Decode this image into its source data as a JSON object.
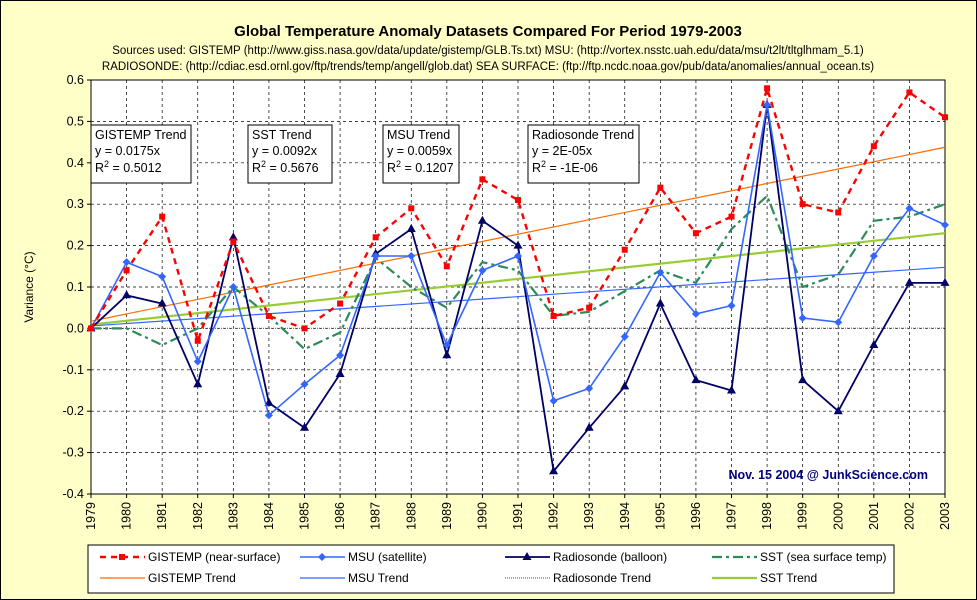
{
  "chart_data": {
    "type": "line",
    "title": "Global Temperature Anomaly Datasets Compared For Period 1979-2003",
    "subtitle_lines": [
      "Sources used: GISTEMP (http://www.giss.nasa.gov/data/update/gistemp/GLB.Ts.txt) MSU: (http://vortex.nsstc.uah.edu/data/msu/t2lt/tltglhmam_5.1)",
      "RADIOSONDE: (http://cdiac.esd.ornl.gov/ftp/trends/temp/angell/glob.dat) SEA SURFACE: (ftp://ftp.ncdc.noaa.gov/pub/data/anomalies/annual_ocean.ts)"
    ],
    "ylabel": "Variance (°C)",
    "xlabel": "",
    "ylim": [
      -0.4,
      0.6
    ],
    "y_ticks": [
      "-0.4",
      "-0.3",
      "-0.2",
      "-0.1",
      "0.0",
      "0.1",
      "0.2",
      "0.3",
      "0.4",
      "0.5",
      "0.6"
    ],
    "categories": [
      "1979",
      "1980",
      "1981",
      "1982",
      "1983",
      "1984",
      "1985",
      "1986",
      "1987",
      "1988",
      "1989",
      "1990",
      "1991",
      "1992",
      "1993",
      "1994",
      "1995",
      "1996",
      "1997",
      "1998",
      "1999",
      "2000",
      "2001",
      "2002",
      "2003"
    ],
    "grid": true,
    "series": [
      {
        "name": "GISTEMP (near-surface)",
        "color": "#ff0000",
        "style": "dashed-square",
        "values": [
          0.0,
          0.14,
          0.27,
          -0.03,
          0.21,
          0.03,
          0.0,
          0.06,
          0.22,
          0.29,
          0.15,
          0.36,
          0.31,
          0.03,
          0.05,
          0.19,
          0.34,
          0.23,
          0.27,
          0.58,
          0.3,
          0.28,
          0.44,
          0.57,
          0.51
        ]
      },
      {
        "name": "MSU (satellite)",
        "color": "#3366ff",
        "style": "solid-diamond",
        "values": [
          0.0,
          0.16,
          0.125,
          -0.08,
          0.1,
          -0.21,
          -0.135,
          -0.065,
          0.175,
          0.175,
          -0.04,
          0.14,
          0.175,
          -0.175,
          -0.145,
          -0.02,
          0.135,
          0.035,
          0.055,
          0.54,
          0.025,
          0.015,
          0.175,
          0.29,
          0.25
        ]
      },
      {
        "name": "Radiosonde (balloon)",
        "color": "#000066",
        "style": "solid-triangle",
        "values": [
          0.0,
          0.08,
          0.06,
          -0.135,
          0.22,
          -0.18,
          -0.24,
          -0.11,
          0.18,
          0.24,
          -0.065,
          0.26,
          0.2,
          -0.345,
          -0.24,
          -0.14,
          0.06,
          -0.125,
          -0.15,
          0.54,
          -0.125,
          -0.2,
          -0.04,
          0.11,
          0.11
        ]
      },
      {
        "name": "SST (sea surface temp)",
        "color": "#2e8b57",
        "style": "dashdot",
        "values": [
          0.0,
          0.0,
          -0.04,
          0.0,
          0.1,
          0.03,
          -0.05,
          -0.01,
          0.17,
          0.1,
          0.05,
          0.16,
          0.14,
          0.03,
          0.04,
          0.09,
          0.14,
          0.11,
          0.24,
          0.32,
          0.1,
          0.13,
          0.26,
          0.27,
          0.3
        ]
      }
    ],
    "trends": [
      {
        "name": "GISTEMP Trend",
        "color": "#ff6a00",
        "equation": "y = 0.0175x",
        "r2_value": "0.5012",
        "slope": 0.0175
      },
      {
        "name": "MSU Trend",
        "color": "#3366ff",
        "equation": "y = 0.0059x",
        "r2_value": "0.1207",
        "slope": 0.0059
      },
      {
        "name": "Radiosonde Trend",
        "color": "#808000",
        "equation": "y = 2E-05x",
        "r2_value": "-1E-06",
        "slope": 2e-05
      },
      {
        "name": "SST Trend",
        "color": "#99cc33",
        "equation": "y = 0.0092x",
        "r2_value": "0.5676",
        "slope": 0.0092
      }
    ],
    "trend_boxes": [
      {
        "title": "GISTEMP Trend",
        "equation": "y = 0.0175x",
        "r2_label": "R",
        "r2_sup": "2",
        "r2_rest": " = 0.5012"
      },
      {
        "title": "SST Trend",
        "equation": "y = 0.0092x",
        "r2_label": "R",
        "r2_sup": "2",
        "r2_rest": " = 0.5676"
      },
      {
        "title": "MSU Trend",
        "equation": "y = 0.0059x",
        "r2_label": "R",
        "r2_sup": "2",
        "r2_rest": " = 0.1207"
      },
      {
        "title": "Radiosonde Trend",
        "equation": "y = 2E-05x",
        "r2_label": "R",
        "r2_sup": "2",
        "r2_rest": " = -1E-06"
      }
    ],
    "credit": "Nov. 15 2004 @ JunkScience.com",
    "legend_position": "bottom",
    "colors": {
      "background": "#ffffc8",
      "plot_area": "#ffffff",
      "grid": "#000000"
    }
  }
}
